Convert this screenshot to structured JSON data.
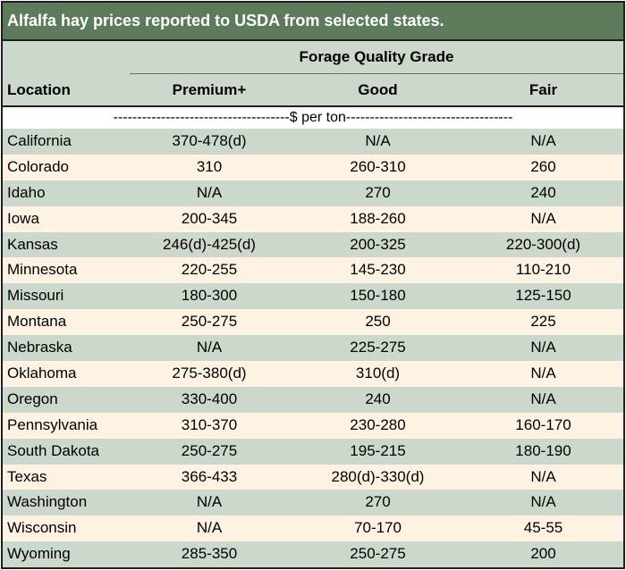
{
  "title": "Alfalfa hay prices reported to USDA from selected states.",
  "group_header": "Forage Quality Grade",
  "columns": {
    "location": "Location",
    "premium": "Premium+",
    "good": "Good",
    "fair": "Fair"
  },
  "units": "-------------------------------------$ per ton-----------------------------------",
  "colors": {
    "title_bar": "#5d7b5a",
    "row_green": "#cbd8cb",
    "row_cream": "#fef3e3",
    "border": "#1f1f1f"
  },
  "rows": [
    {
      "location": "California",
      "premium": "370-478(d)",
      "good": "N/A",
      "fair": "N/A"
    },
    {
      "location": "Colorado",
      "premium": "310",
      "good": "260-310",
      "fair": "260"
    },
    {
      "location": "Idaho",
      "premium": "N/A",
      "good": "270",
      "fair": "240"
    },
    {
      "location": "Iowa",
      "premium": "200-345",
      "good": "188-260",
      "fair": "N/A"
    },
    {
      "location": "Kansas",
      "premium": "246(d)-425(d)",
      "good": "200-325",
      "fair": "220-300(d)"
    },
    {
      "location": "Minnesota",
      "premium": "220-255",
      "good": "145-230",
      "fair": "110-210"
    },
    {
      "location": "Missouri",
      "premium": "180-300",
      "good": "150-180",
      "fair": "125-150"
    },
    {
      "location": "Montana",
      "premium": "250-275",
      "good": "250",
      "fair": "225"
    },
    {
      "location": "Nebraska",
      "premium": "N/A",
      "good": "225-275",
      "fair": "N/A"
    },
    {
      "location": "Oklahoma",
      "premium": "275-380(d)",
      "good": "310(d)",
      "fair": "N/A"
    },
    {
      "location": "Oregon",
      "premium": "330-400",
      "good": "240",
      "fair": "N/A"
    },
    {
      "location": "Pennsylvania",
      "premium": "310-370",
      "good": "230-280",
      "fair": "160-170"
    },
    {
      "location": "South Dakota",
      "premium": "250-275",
      "good": "195-215",
      "fair": "180-190"
    },
    {
      "location": "Texas",
      "premium": "366-433",
      "good": "280(d)-330(d)",
      "fair": "N/A"
    },
    {
      "location": "Washington",
      "premium": "N/A",
      "good": "270",
      "fair": "N/A"
    },
    {
      "location": "Wisconsin",
      "premium": "N/A",
      "good": "70-170",
      "fair": "45-55"
    },
    {
      "location": "Wyoming",
      "premium": "285-350",
      "good": "250-275",
      "fair": "200"
    }
  ]
}
